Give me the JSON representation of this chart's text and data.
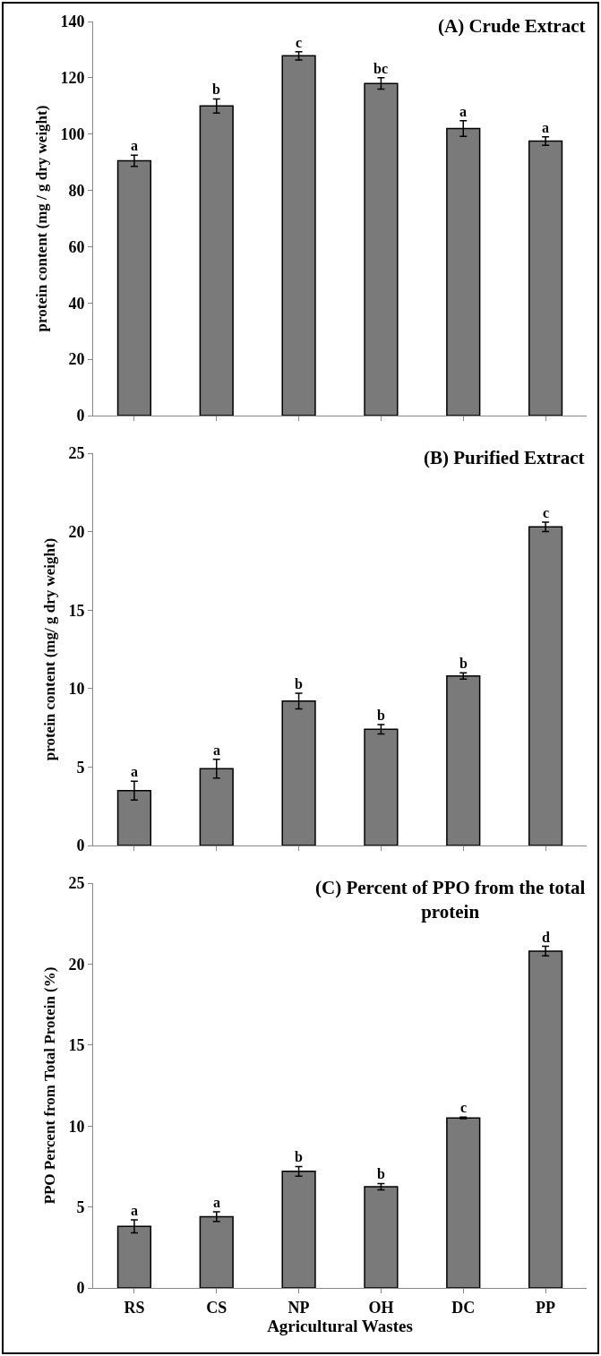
{
  "chart_data": [
    {
      "type": "bar",
      "title": "(A) Crude Extract",
      "ylabel": "protein content (mg / g dry weight)",
      "categories": [
        "RS",
        "CS",
        "NP",
        "OH",
        "DC",
        "PP"
      ],
      "color": "#7a7a7a",
      "values": [
        90.5,
        110,
        127.8,
        118,
        102,
        97.5
      ],
      "errors": [
        2,
        2.5,
        1.5,
        2,
        2.8,
        1.5
      ],
      "ylim": [
        0,
        140
      ],
      "yticks": [
        0,
        20,
        40,
        60,
        80,
        100,
        120,
        140
      ],
      "tick_labels": "y",
      "annotations": [
        {
          "text": "a",
          "x": "RS",
          "y": 92.5
        },
        {
          "text": "b",
          "x": "CS",
          "y": 112.5
        },
        {
          "text": "c",
          "x": "NP",
          "y": 129.3
        },
        {
          "text": "bc",
          "x": "OH",
          "y": 120
        },
        {
          "text": "a",
          "x": "DC",
          "y": 104.8
        },
        {
          "text": "a",
          "x": "PP",
          "y": 99
        }
      ]
    },
    {
      "type": "bar",
      "title": "(B) Purified Extract",
      "ylabel": "protein content (mg/ g dry weight)",
      "categories": [
        "RS",
        "CS",
        "NP",
        "OH",
        "DC",
        "PP"
      ],
      "color": "#7a7a7a",
      "values": [
        3.5,
        4.9,
        9.2,
        7.4,
        10.8,
        20.3
      ],
      "errors": [
        0.6,
        0.6,
        0.5,
        0.3,
        0.2,
        0.3
      ],
      "ylim": [
        0,
        25
      ],
      "yticks": [
        0,
        5,
        10,
        15,
        20,
        25
      ],
      "tick_labels": "y",
      "annotations": [
        {
          "text": "a",
          "x": "RS",
          "y": 4.1
        },
        {
          "text": "a",
          "x": "CS",
          "y": 5.5
        },
        {
          "text": "b",
          "x": "NP",
          "y": 9.7
        },
        {
          "text": "b",
          "x": "OH",
          "y": 7.7
        },
        {
          "text": "b",
          "x": "DC",
          "y": 11
        },
        {
          "text": "c",
          "x": "PP",
          "y": 20.6
        }
      ]
    },
    {
      "type": "bar",
      "title": "(C) Percent of PPO from the total protein",
      "xlabel": "Agricultural Wastes",
      "ylabel": "PPO Percent from Total Protein (%)",
      "categories": [
        "RS",
        "CS",
        "NP",
        "OH",
        "DC",
        "PP"
      ],
      "color": "#7a7a7a",
      "values": [
        3.8,
        4.4,
        7.2,
        6.25,
        10.5,
        20.8
      ],
      "errors": [
        0.4,
        0.3,
        0.3,
        0.2,
        0.05,
        0.3
      ],
      "ylim": [
        0,
        25
      ],
      "yticks": [
        0,
        5,
        10,
        15,
        20,
        25
      ],
      "annotations": [
        {
          "text": "a",
          "x": "RS",
          "y": 4.2
        },
        {
          "text": "a",
          "x": "CS",
          "y": 4.7
        },
        {
          "text": "b",
          "x": "NP",
          "y": 7.5
        },
        {
          "text": "b",
          "x": "OH",
          "y": 6.45
        },
        {
          "text": "c",
          "x": "DC",
          "y": 10.55
        },
        {
          "text": "d",
          "x": "PP",
          "y": 21.1
        }
      ]
    }
  ]
}
